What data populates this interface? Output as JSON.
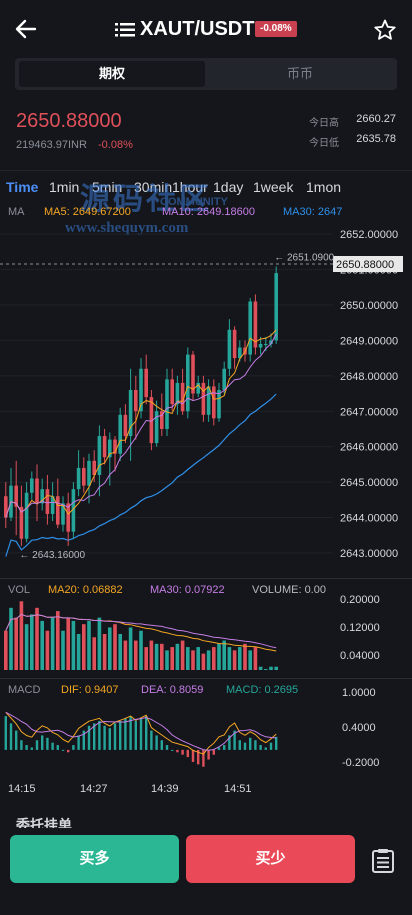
{
  "header": {
    "pair": "XAUT/USDT",
    "change_badge": "-0.08%",
    "badge_color": "#d9414d",
    "back_icon": "back-arrow-icon",
    "menu_icon": "list-menu-icon",
    "star_icon": "star-outline-icon"
  },
  "segments": {
    "left": "期权",
    "right": "币币"
  },
  "price": {
    "last": "2650.88000",
    "inr": "219463.97INR",
    "change": "-0.08%",
    "high_label": "今日高",
    "high": "2660.27",
    "low_label": "今日低",
    "low": "2635.78"
  },
  "timeframes": [
    "Time",
    "1min",
    "5min",
    "30min",
    "1hour",
    "1day",
    "1week",
    "1mon"
  ],
  "watermark": {
    "line1": "源码社区",
    "line1b": "COMMUNITY",
    "line2": "www.shequym.com"
  },
  "ma_legend": {
    "label": "MA",
    "ma5": "MA5: 2649.67200",
    "ma10": "MA10: 2649.18600",
    "ma30": "MA30: 2647"
  },
  "price_axis": [
    "2652.00000",
    "2651.00000",
    "2650.00000",
    "2649.00000",
    "2648.00000",
    "2647.00000",
    "2646.00000",
    "2645.00000",
    "2644.00000",
    "2643.00000"
  ],
  "current_price_tag": "2650.88000",
  "max_annotation": "2651.0900",
  "min_annotation": "2643.16000",
  "vol_legend": {
    "label": "VOL",
    "ma20": "MA20: 0.06882",
    "ma30": "MA30: 0.07922",
    "volume": "VOLUME: 0.00"
  },
  "vol_axis": [
    "0.20000",
    "0.12000",
    "0.04000"
  ],
  "macd_legend": {
    "label": "MACD",
    "dif": "DIF: 0.9407",
    "dea": "DEA: 0.8059",
    "macd": "MACD: 0.2695"
  },
  "macd_axis": [
    "1.0000",
    "0.4000",
    "-0.2000"
  ],
  "time_axis": [
    "14:15",
    "14:27",
    "14:39",
    "14:51"
  ],
  "section_peek": "委托挂单",
  "footer": {
    "buy": "买多",
    "sell": "买少",
    "orders_icon": "order-list-icon"
  },
  "colors": {
    "up": "#26a69a",
    "down": "#e0505a",
    "buy_bg": "#2bb794",
    "sell_bg": "#ea4a58",
    "ma5": "#f5a623",
    "ma10": "#c67ee6",
    "ma30": "#2f8fe8",
    "accent": "#4b8ef5"
  },
  "chart_data": {
    "type": "candlestick",
    "ylim": [
      2642.8,
      2652.4
    ],
    "candles": [
      {
        "o": 2644.6,
        "c": 2644.0,
        "h": 2645.0,
        "l": 2643.7
      },
      {
        "o": 2644.0,
        "c": 2644.9,
        "h": 2645.4,
        "l": 2643.9
      },
      {
        "o": 2644.9,
        "c": 2644.3,
        "h": 2645.6,
        "l": 2643.5
      },
      {
        "o": 2644.3,
        "c": 2643.4,
        "h": 2644.9,
        "l": 2643.2
      },
      {
        "o": 2643.4,
        "c": 2644.7,
        "h": 2645.0,
        "l": 2643.3
      },
      {
        "o": 2644.7,
        "c": 2645.1,
        "h": 2645.3,
        "l": 2644.5
      },
      {
        "o": 2645.1,
        "c": 2644.4,
        "h": 2645.5,
        "l": 2643.9
      },
      {
        "o": 2644.4,
        "c": 2644.8,
        "h": 2645.1,
        "l": 2644.2
      },
      {
        "o": 2644.8,
        "c": 2644.1,
        "h": 2645.2,
        "l": 2643.8
      },
      {
        "o": 2644.1,
        "c": 2644.6,
        "h": 2645.0,
        "l": 2643.9
      },
      {
        "o": 2644.6,
        "c": 2643.8,
        "h": 2645.1,
        "l": 2643.7
      },
      {
        "o": 2643.8,
        "c": 2644.4,
        "h": 2644.6,
        "l": 2643.6
      },
      {
        "o": 2644.4,
        "c": 2643.6,
        "h": 2644.7,
        "l": 2643.2
      },
      {
        "o": 2643.6,
        "c": 2644.8,
        "h": 2645.0,
        "l": 2643.4
      },
      {
        "o": 2644.8,
        "c": 2645.4,
        "h": 2645.9,
        "l": 2644.6
      },
      {
        "o": 2645.4,
        "c": 2644.9,
        "h": 2645.7,
        "l": 2644.7
      },
      {
        "o": 2644.9,
        "c": 2645.6,
        "h": 2645.8,
        "l": 2644.4
      },
      {
        "o": 2645.6,
        "c": 2645.2,
        "h": 2645.9,
        "l": 2645.0
      },
      {
        "o": 2645.2,
        "c": 2646.3,
        "h": 2646.6,
        "l": 2644.6
      },
      {
        "o": 2646.3,
        "c": 2645.7,
        "h": 2646.5,
        "l": 2645.5
      },
      {
        "o": 2645.7,
        "c": 2646.2,
        "h": 2646.4,
        "l": 2644.9
      },
      {
        "o": 2646.2,
        "c": 2645.8,
        "h": 2646.3,
        "l": 2645.3
      },
      {
        "o": 2645.8,
        "c": 2646.9,
        "h": 2647.1,
        "l": 2645.6
      },
      {
        "o": 2646.9,
        "c": 2646.3,
        "h": 2647.2,
        "l": 2646.1
      },
      {
        "o": 2646.3,
        "c": 2647.6,
        "h": 2648.2,
        "l": 2645.6
      },
      {
        "o": 2647.6,
        "c": 2647.0,
        "h": 2648.0,
        "l": 2646.2
      },
      {
        "o": 2647.0,
        "c": 2648.2,
        "h": 2648.5,
        "l": 2646.8
      },
      {
        "o": 2648.2,
        "c": 2647.4,
        "h": 2648.6,
        "l": 2647.2
      },
      {
        "o": 2647.4,
        "c": 2646.1,
        "h": 2647.6,
        "l": 2645.9
      },
      {
        "o": 2646.1,
        "c": 2647.0,
        "h": 2647.3,
        "l": 2646.0
      },
      {
        "o": 2647.0,
        "c": 2646.5,
        "h": 2647.5,
        "l": 2646.3
      },
      {
        "o": 2646.5,
        "c": 2647.9,
        "h": 2648.2,
        "l": 2646.3
      },
      {
        "o": 2647.9,
        "c": 2647.2,
        "h": 2648.2,
        "l": 2647.0
      },
      {
        "o": 2647.2,
        "c": 2647.8,
        "h": 2648.0,
        "l": 2646.9
      },
      {
        "o": 2647.8,
        "c": 2647.0,
        "h": 2648.2,
        "l": 2646.9
      },
      {
        "o": 2647.0,
        "c": 2648.6,
        "h": 2648.8,
        "l": 2646.8
      },
      {
        "o": 2648.6,
        "c": 2647.5,
        "h": 2648.7,
        "l": 2647.3
      },
      {
        "o": 2647.5,
        "c": 2647.8,
        "h": 2648.0,
        "l": 2647.4
      },
      {
        "o": 2647.8,
        "c": 2646.9,
        "h": 2648.0,
        "l": 2646.7
      },
      {
        "o": 2646.9,
        "c": 2647.7,
        "h": 2647.9,
        "l": 2646.7
      },
      {
        "o": 2647.7,
        "c": 2646.8,
        "h": 2647.9,
        "l": 2646.6
      },
      {
        "o": 2646.8,
        "c": 2647.6,
        "h": 2647.8,
        "l": 2646.7
      },
      {
        "o": 2647.6,
        "c": 2648.2,
        "h": 2648.4,
        "l": 2647.5
      },
      {
        "o": 2648.2,
        "c": 2649.3,
        "h": 2649.6,
        "l": 2648.0
      },
      {
        "o": 2649.3,
        "c": 2648.5,
        "h": 2649.4,
        "l": 2648.2
      },
      {
        "o": 2648.5,
        "c": 2648.8,
        "h": 2649.0,
        "l": 2648.4
      },
      {
        "o": 2648.8,
        "c": 2648.6,
        "h": 2649.0,
        "l": 2648.4
      },
      {
        "o": 2648.6,
        "c": 2650.1,
        "h": 2650.2,
        "l": 2648.4
      },
      {
        "o": 2650.1,
        "c": 2648.8,
        "h": 2650.3,
        "l": 2648.6
      },
      {
        "o": 2648.8,
        "c": 2648.9,
        "h": 2649.1,
        "l": 2648.6
      },
      {
        "o": 2648.9,
        "c": 2648.9,
        "h": 2649.1,
        "l": 2648.7
      },
      {
        "o": 2648.9,
        "c": 2649.0,
        "h": 2649.2,
        "l": 2648.8
      },
      {
        "o": 2649.0,
        "c": 2650.9,
        "h": 2651.09,
        "l": 2648.9
      }
    ],
    "volume": [
      0.12,
      0.19,
      0.16,
      0.21,
      0.14,
      0.17,
      0.19,
      0.15,
      0.12,
      0.16,
      0.18,
      0.12,
      0.16,
      0.15,
      0.11,
      0.14,
      0.15,
      0.1,
      0.16,
      0.11,
      0.13,
      0.14,
      0.11,
      0.09,
      0.13,
      0.09,
      0.12,
      0.07,
      0.09,
      0.08,
      0.08,
      0.06,
      0.07,
      0.08,
      0.09,
      0.07,
      0.06,
      0.07,
      0.05,
      0.06,
      0.07,
      0.08,
      0.09,
      0.07,
      0.06,
      0.07,
      0.08,
      0.06,
      0.07,
      0.01,
      0.0,
      0.01,
      0.01
    ],
    "vol_ylim": [
      0,
      0.22
    ],
    "macd_hist": [
      0.7,
      0.55,
      0.4,
      0.2,
      0.1,
      0.05,
      0.2,
      0.3,
      0.25,
      0.15,
      0.1,
      0.0,
      -0.05,
      0.1,
      0.3,
      0.4,
      0.5,
      0.55,
      0.6,
      0.5,
      0.45,
      0.55,
      0.6,
      0.65,
      0.7,
      0.6,
      0.65,
      0.7,
      0.4,
      0.3,
      0.2,
      0.1,
      0.0,
      -0.05,
      -0.1,
      -0.15,
      -0.25,
      -0.3,
      -0.35,
      -0.2,
      -0.1,
      0.05,
      0.1,
      0.3,
      0.4,
      0.2,
      0.15,
      0.25,
      0.2,
      0.1,
      0.05,
      0.15,
      0.27
    ],
    "macd_ylim": [
      -0.5,
      1.2
    ]
  }
}
